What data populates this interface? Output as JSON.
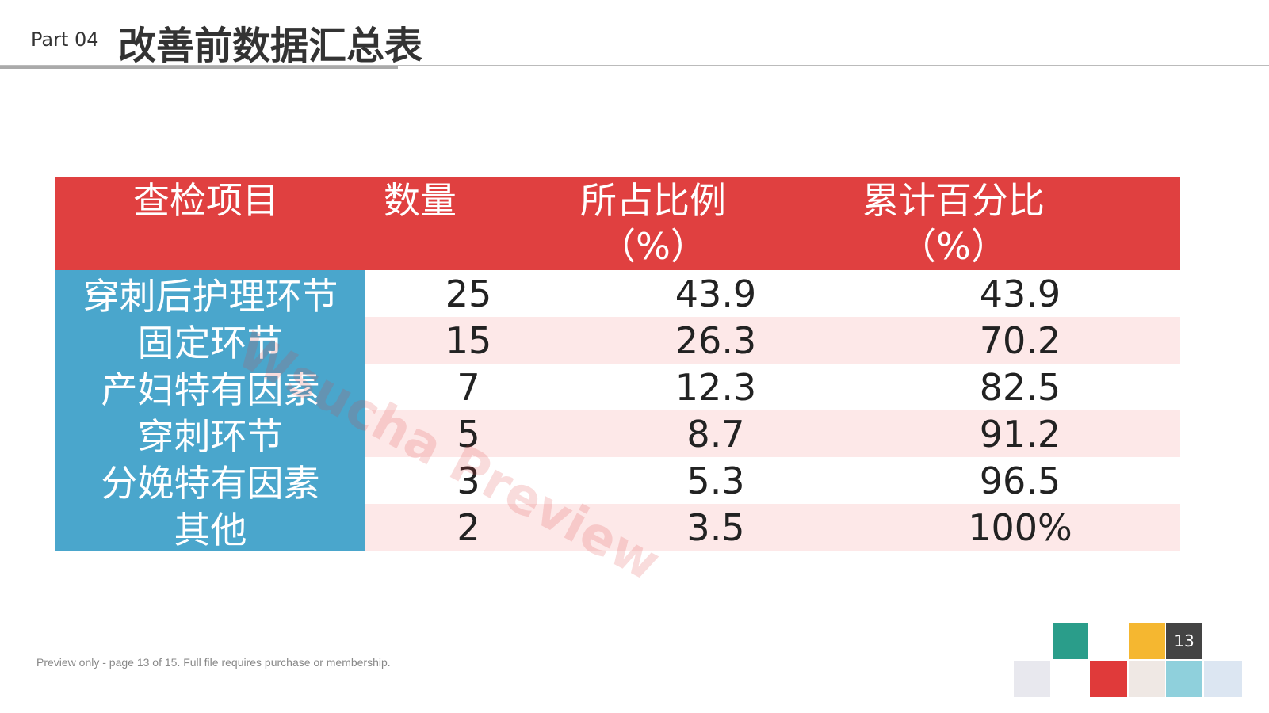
{
  "header": {
    "part": "Part 04",
    "title": "改善前数据汇总表"
  },
  "table": {
    "headers": [
      "查检项目",
      "数量",
      "所占比例\n（%）",
      "累计百分比\n（%）"
    ],
    "rows": [
      [
        "穿刺后护理环节",
        25,
        43.9,
        43.9
      ],
      [
        "固定环节",
        15,
        26.3,
        70.2
      ],
      [
        "产妇特有因素",
        7,
        12.3,
        82.5
      ],
      [
        "穿刺环节",
        5,
        8.7,
        91.2
      ],
      [
        "分娩特有因素",
        3,
        5.3,
        96.5
      ],
      [
        "其他",
        2,
        3.5,
        "100%"
      ]
    ]
  },
  "watermark": "Wsucha Preview",
  "footer": {
    "note": "Preview only - page 13 of 15. Full file requires purchase or membership.",
    "page": "13"
  }
}
